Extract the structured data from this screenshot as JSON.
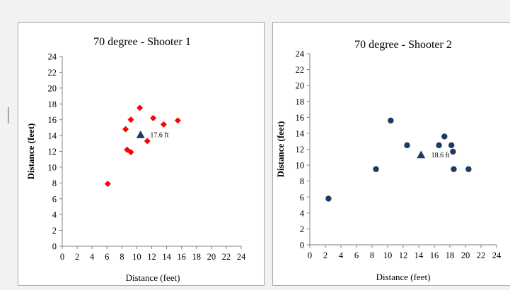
{
  "chart_data": [
    {
      "type": "scatter",
      "title": "70 degree - Shooter 1",
      "xlabel": "Distance (feet)",
      "ylabel": "Distance (feet)",
      "xlim": [
        0,
        24
      ],
      "ylim": [
        0,
        24
      ],
      "xticks": [
        "0",
        "2",
        "4",
        "6",
        "8",
        "10",
        "12",
        "14",
        "16",
        "18",
        "20",
        "22",
        "24"
      ],
      "yticks": [
        "0",
        "2",
        "4",
        "6",
        "8",
        "10",
        "12",
        "14",
        "16",
        "18",
        "20",
        "22",
        "24"
      ],
      "grid": false,
      "series": [
        {
          "marker": "diamond",
          "color": "#ff0000",
          "points": [
            [
              6.1,
              7.9
            ],
            [
              8.5,
              14.8
            ],
            [
              8.7,
              12.2
            ],
            [
              9.2,
              11.9
            ],
            [
              9.2,
              16
            ],
            [
              10.4,
              17.5
            ],
            [
              11.4,
              13.3
            ],
            [
              12.2,
              16.2
            ],
            [
              13.6,
              15.4
            ],
            [
              15.5,
              15.9
            ]
          ]
        },
        {
          "marker": "triangle",
          "color": "#1f3864",
          "points": [
            [
              10.5,
              14.1
            ]
          ]
        }
      ],
      "annotation": {
        "text": "17.6 ft",
        "x": 11.8,
        "y": 14.1
      }
    },
    {
      "type": "scatter",
      "title": "70 degree - Shooter 2",
      "xlabel": "Distance (feet)",
      "ylabel": "Distance (feet)",
      "xlim": [
        0,
        24
      ],
      "ylim": [
        0,
        24
      ],
      "xticks": [
        "0",
        "2",
        "4",
        "6",
        "8",
        "10",
        "12",
        "14",
        "16",
        "18",
        "20",
        "22",
        "24"
      ],
      "yticks": [
        "0",
        "2",
        "4",
        "6",
        "8",
        "10",
        "12",
        "14",
        "16",
        "18",
        "20",
        "22",
        "24"
      ],
      "grid": false,
      "series": [
        {
          "marker": "circle",
          "color": "#1f3864",
          "points": [
            [
              2.4,
              5.8
            ],
            [
              8.5,
              9.5
            ],
            [
              10.4,
              15.6
            ],
            [
              12.5,
              12.5
            ],
            [
              16.6,
              12.5
            ],
            [
              17.3,
              13.6
            ],
            [
              18.2,
              12.5
            ],
            [
              18.4,
              11.7
            ],
            [
              18.5,
              9.5
            ],
            [
              20.4,
              9.5
            ]
          ]
        },
        {
          "marker": "triangle",
          "color": "#1f3864",
          "points": [
            [
              14.3,
              11.3
            ]
          ]
        }
      ],
      "annotation": {
        "text": "18.6 ft",
        "x": 15.6,
        "y": 11.3
      }
    }
  ]
}
